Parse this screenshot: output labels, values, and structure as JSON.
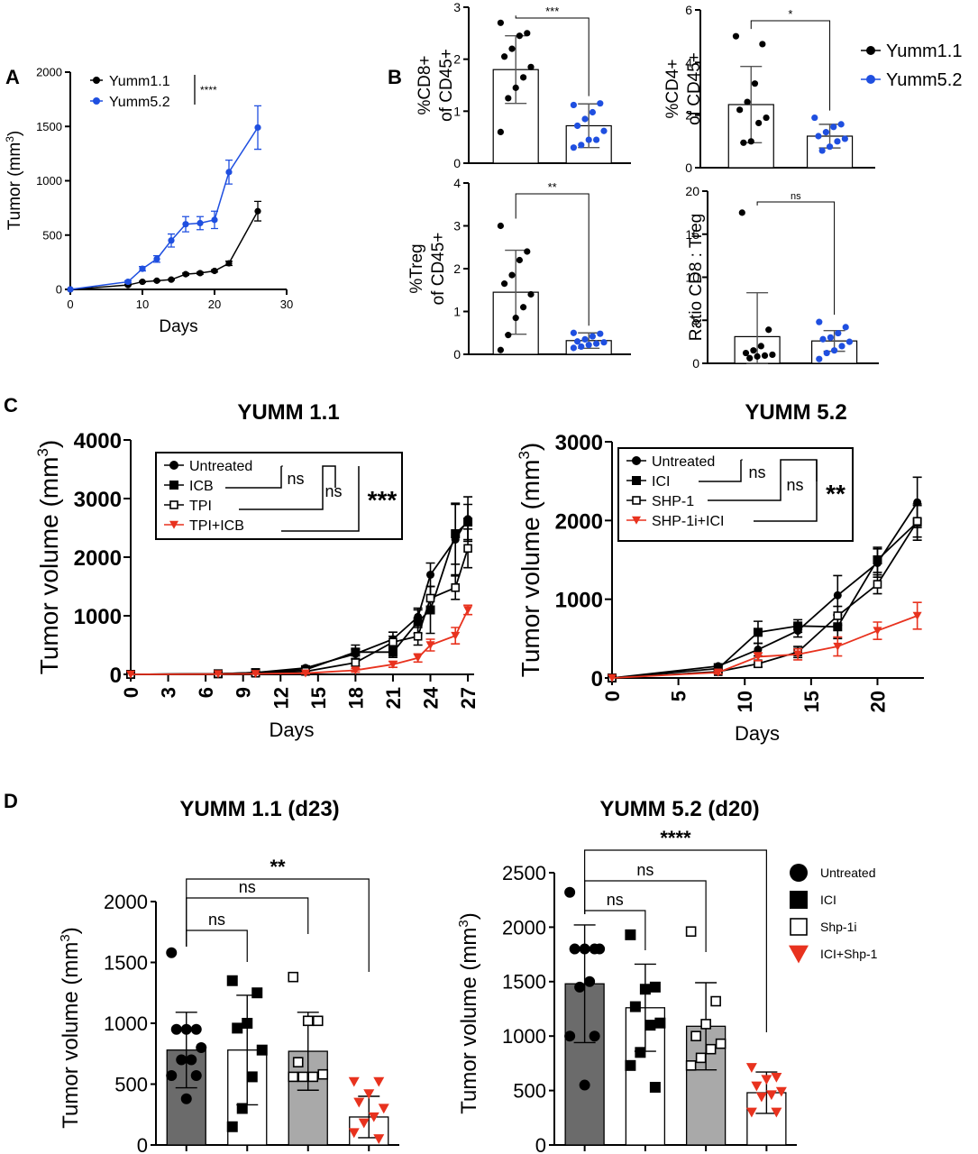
{
  "panel_letters": [
    "A",
    "B",
    "C",
    "D"
  ],
  "chart_data": [
    {
      "id": "A",
      "type": "line",
      "title": "",
      "xlabel": "Days",
      "ylabel": "Tumor (mm3)",
      "xlim": [
        0,
        30
      ],
      "ylim": [
        0,
        2000
      ],
      "xticks": [
        0,
        10,
        20,
        30
      ],
      "yticks": [
        0,
        500,
        1000,
        1500,
        2000
      ],
      "legend_position": "top-left",
      "series": [
        {
          "name": "Yumm1.1",
          "color": "#000000",
          "marker": "circle",
          "x": [
            0,
            8,
            10,
            12,
            14,
            16,
            18,
            20,
            22,
            26
          ],
          "y": [
            0,
            40,
            70,
            80,
            90,
            140,
            150,
            170,
            240,
            720
          ],
          "err": [
            0,
            5,
            5,
            5,
            5,
            10,
            10,
            10,
            20,
            90
          ]
        },
        {
          "name": "Yumm5.2",
          "color": "#1f4fe0",
          "marker": "circle",
          "x": [
            0,
            8,
            10,
            12,
            14,
            16,
            18,
            20,
            22,
            26
          ],
          "y": [
            0,
            70,
            190,
            280,
            450,
            600,
            610,
            640,
            1080,
            1490
          ],
          "err": [
            0,
            10,
            20,
            30,
            60,
            70,
            60,
            80,
            110,
            200
          ]
        }
      ],
      "annotations": [
        {
          "text": "****"
        }
      ]
    },
    {
      "id": "B1",
      "type": "bar",
      "ylabel": "%CD8+ of CD45+",
      "ylim": [
        0,
        3
      ],
      "yticks": [
        0,
        1,
        2,
        3
      ],
      "significance": "***",
      "bars": [
        {
          "group": "Yumm1.1",
          "mean": 1.8,
          "sd": 0.65,
          "color": "#000000",
          "points": [
            2.7,
            2.5,
            2.45,
            2.2,
            2.05,
            1.85,
            1.65,
            1.45,
            1.25,
            0.6
          ]
        },
        {
          "group": "Yumm5.2",
          "mean": 0.72,
          "sd": 0.42,
          "color": "#1f4fe0",
          "points": [
            1.12,
            1.15,
            0.98,
            0.85,
            0.72,
            0.62,
            0.45,
            0.45,
            0.35,
            0.3
          ]
        }
      ]
    },
    {
      "id": "B2",
      "type": "bar",
      "ylabel": "%CD4+ of CD45+",
      "ylim": [
        0,
        6
      ],
      "yticks": [
        0,
        2,
        4,
        6
      ],
      "significance": "*",
      "bars": [
        {
          "group": "Yumm1.1",
          "mean": 2.4,
          "sd": 1.45,
          "color": "#000000",
          "points": [
            5.0,
            4.7,
            3.2,
            2.5,
            2.2,
            1.9,
            1.7,
            1.0,
            0.95
          ]
        },
        {
          "group": "Yumm5.2",
          "mean": 1.2,
          "sd": 0.45,
          "color": "#1f4fe0",
          "points": [
            1.9,
            1.65,
            1.55,
            1.35,
            1.2,
            1.1,
            1.0,
            0.8,
            0.65
          ]
        }
      ]
    },
    {
      "id": "B3",
      "type": "bar",
      "ylabel": "%Treg of CD45+",
      "ylim": [
        0,
        4
      ],
      "yticks": [
        0,
        1,
        2,
        3,
        4
      ],
      "significance": "**",
      "bars": [
        {
          "group": "Yumm1.1",
          "mean": 1.45,
          "sd": 0.98,
          "color": "#000000",
          "points": [
            3.0,
            2.4,
            2.2,
            1.85,
            1.65,
            1.4,
            1.1,
            0.85,
            0.45,
            0.1
          ]
        },
        {
          "group": "Yumm5.2",
          "mean": 0.32,
          "sd": 0.18,
          "color": "#1f4fe0",
          "points": [
            0.5,
            0.48,
            0.42,
            0.35,
            0.3,
            0.28,
            0.25,
            0.22,
            0.18,
            0.15
          ]
        }
      ]
    },
    {
      "id": "B4",
      "type": "bar",
      "ylabel": "Ratio CD8 : Treg",
      "ylim": [
        0,
        20
      ],
      "yticks": [
        0,
        5,
        10,
        15,
        20
      ],
      "significance": "ns",
      "bars": [
        {
          "group": "Yumm1.1",
          "mean": 3.1,
          "sd": 5.1,
          "color": "#000000",
          "points": [
            17.5,
            3.9,
            2.0,
            1.5,
            1.2,
            1.0,
            0.9,
            0.8,
            0.6
          ]
        },
        {
          "group": "Yumm5.2",
          "mean": 2.6,
          "sd": 1.2,
          "color": "#1f4fe0",
          "points": [
            4.8,
            4.2,
            3.5,
            3.0,
            2.8,
            2.5,
            2.0,
            1.5,
            1.2,
            0.5
          ]
        }
      ]
    },
    {
      "id": "C1",
      "type": "line",
      "title": "YUMM 1.1",
      "xlabel": "Days",
      "ylabel": "Tumor volume (mm3)",
      "xlim": [
        0,
        27.5
      ],
      "ylim": [
        0,
        4000
      ],
      "xticks": [
        0,
        3,
        6,
        9,
        12,
        15,
        18,
        21,
        24,
        27
      ],
      "yticks": [
        0,
        1000,
        2000,
        3000,
        4000
      ],
      "legend_position": "top-left",
      "significance": [
        "ns",
        "ns",
        "***"
      ],
      "series": [
        {
          "name": "Untreated",
          "marker": "circle",
          "color": "#000000",
          "x": [
            0,
            7,
            10,
            14,
            18,
            21,
            23,
            24,
            26,
            27
          ],
          "y": [
            0,
            10,
            30,
            110,
            350,
            600,
            980,
            1700,
            2300,
            2650
          ],
          "err": [
            0,
            5,
            10,
            30,
            80,
            120,
            150,
            200,
            600,
            380
          ]
        },
        {
          "name": "ICB",
          "marker": "square",
          "color": "#000000",
          "x": [
            0,
            7,
            10,
            14,
            18,
            21,
            23,
            24,
            26,
            27
          ],
          "y": [
            0,
            10,
            30,
            80,
            380,
            380,
            900,
            1100,
            2400,
            2600
          ],
          "err": [
            0,
            5,
            10,
            20,
            120,
            90,
            200,
            400,
            520,
            300
          ]
        },
        {
          "name": "TPI",
          "marker": "open-square",
          "color": "#000000",
          "x": [
            0,
            7,
            10,
            14,
            18,
            21,
            23,
            24,
            26,
            27
          ],
          "y": [
            0,
            10,
            20,
            50,
            200,
            550,
            650,
            1300,
            1480,
            2150
          ],
          "err": [
            0,
            5,
            5,
            20,
            60,
            100,
            150,
            200,
            200,
            330
          ]
        },
        {
          "name": "TPI+ICB",
          "marker": "triangle-down",
          "color": "#e8321e",
          "x": [
            0,
            7,
            10,
            14,
            18,
            21,
            23,
            24,
            26,
            27
          ],
          "y": [
            0,
            5,
            10,
            20,
            70,
            170,
            280,
            500,
            660,
            1100
          ],
          "err": [
            0,
            3,
            5,
            10,
            30,
            50,
            70,
            100,
            140,
            80
          ]
        }
      ]
    },
    {
      "id": "C2",
      "type": "line",
      "title": "YUMM 5.2",
      "xlabel": "Days",
      "ylabel": "Tumor volume (mm3)",
      "xlim": [
        0,
        23.5
      ],
      "ylim": [
        0,
        3000
      ],
      "xticks": [
        0,
        5,
        10,
        15,
        20
      ],
      "yticks": [
        0,
        1000,
        2000,
        3000
      ],
      "legend_position": "top-left",
      "significance": [
        "ns",
        "ns",
        "**"
      ],
      "series": [
        {
          "name": "Untreated",
          "marker": "circle",
          "color": "#000000",
          "x": [
            0,
            8,
            11,
            14,
            17,
            20,
            23
          ],
          "y": [
            0,
            150,
            360,
            600,
            1050,
            1460,
            2230
          ],
          "err": [
            0,
            30,
            80,
            80,
            250,
            180,
            320
          ]
        },
        {
          "name": "ICI",
          "marker": "square",
          "color": "#000000",
          "x": [
            0,
            8,
            11,
            14,
            17,
            20,
            23
          ],
          "y": [
            0,
            120,
            580,
            660,
            650,
            1500,
            1980
          ],
          "err": [
            0,
            30,
            140,
            80,
            150,
            160,
            230
          ]
        },
        {
          "name": "SHP-1",
          "marker": "open-square",
          "color": "#000000",
          "x": [
            0,
            8,
            11,
            14,
            17,
            20,
            23
          ],
          "y": [
            0,
            80,
            180,
            330,
            790,
            1190,
            1990
          ],
          "err": [
            0,
            20,
            40,
            70,
            120,
            120,
            200
          ]
        },
        {
          "name": "SHP-1i+ICI",
          "marker": "triangle-down",
          "color": "#e8321e",
          "x": [
            0,
            8,
            11,
            14,
            17,
            20,
            23
          ],
          "y": [
            0,
            70,
            270,
            300,
            400,
            600,
            790
          ],
          "err": [
            0,
            20,
            50,
            70,
            120,
            110,
            170
          ]
        }
      ]
    },
    {
      "id": "D1",
      "type": "bar",
      "title": "YUMM 1.1 (d23)",
      "ylabel": "Tumor volume (mm3)",
      "ylim": [
        0,
        2000
      ],
      "yticks": [
        0,
        500,
        1000,
        1500,
        2000
      ],
      "comparisons": [
        "ns",
        "ns",
        "**"
      ],
      "bars": [
        {
          "group": "Untreated",
          "mean": 780,
          "sd": 310,
          "fill": "#6b6b6b",
          "marker": "circle",
          "color": "#000000",
          "points": [
            1580,
            950,
            950,
            950,
            800,
            700,
            700,
            570,
            570,
            380
          ]
        },
        {
          "group": "ICI",
          "mean": 780,
          "sd": 450,
          "fill": "#ffffff",
          "marker": "square",
          "color": "#000000",
          "points": [
            1350,
            1250,
            1000,
            960,
            780,
            560,
            300,
            150
          ]
        },
        {
          "group": "Shp-1i",
          "mean": 770,
          "sd": 320,
          "fill": "#a9a9a9",
          "marker": "open-square",
          "color": "#000000",
          "points": [
            1380,
            1020,
            1020,
            680,
            580,
            560,
            560,
            560
          ]
        },
        {
          "group": "ICI+Shp-1",
          "mean": 230,
          "sd": 170,
          "fill": "#ffffff",
          "marker": "triangle-down",
          "color": "#e8321e",
          "points": [
            520,
            520,
            420,
            350,
            300,
            230,
            180,
            100,
            50
          ]
        }
      ]
    },
    {
      "id": "D2",
      "type": "bar",
      "title": "YUMM 5.2 (d20)",
      "ylabel": "Tumor volume (mm3)",
      "ylim": [
        0,
        2500
      ],
      "yticks": [
        0,
        500,
        1000,
        1500,
        2000,
        2500
      ],
      "comparisons": [
        "ns",
        "ns",
        "****"
      ],
      "legend": [
        "Untreated",
        "ICI",
        "Shp-1i",
        "ICI+Shp-1"
      ],
      "bars": [
        {
          "group": "Untreated",
          "mean": 1480,
          "sd": 540,
          "fill": "#6b6b6b",
          "marker": "circle",
          "color": "#000000",
          "points": [
            2320,
            1800,
            1800,
            1800,
            1800,
            1500,
            1450,
            1000,
            1000,
            550
          ]
        },
        {
          "group": "ICI",
          "mean": 1260,
          "sd": 400,
          "fill": "#ffffff",
          "marker": "square",
          "color": "#000000",
          "points": [
            1930,
            1450,
            1430,
            1270,
            1120,
            1100,
            850,
            730,
            530
          ]
        },
        {
          "group": "Shp-1i",
          "mean": 1090,
          "sd": 400,
          "fill": "#a9a9a9",
          "marker": "open-square",
          "color": "#000000",
          "points": [
            1960,
            1320,
            1110,
            1000,
            930,
            880,
            800,
            730
          ]
        },
        {
          "group": "ICI+Shp-1",
          "mean": 480,
          "sd": 190,
          "fill": "#ffffff",
          "marker": "triangle-down",
          "color": "#e8321e",
          "points": [
            710,
            620,
            600,
            540,
            490,
            460,
            440,
            300,
            300
          ]
        }
      ]
    }
  ]
}
